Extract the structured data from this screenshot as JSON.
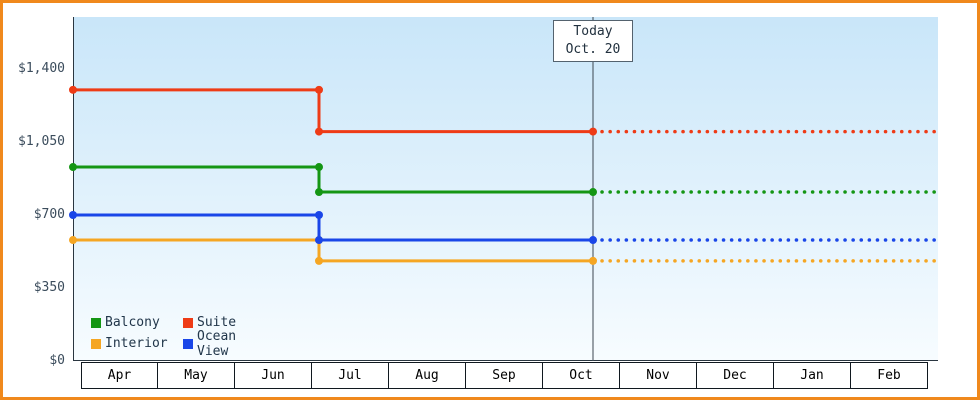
{
  "frame": {
    "border_color": "#f0891c"
  },
  "chart_data": {
    "type": "line",
    "line_style": "step",
    "x_categories": [
      "Apr",
      "May",
      "Jun",
      "Jul",
      "Aug",
      "Sep",
      "Oct",
      "Nov",
      "Dec",
      "Jan",
      "Feb"
    ],
    "y_ticks": [
      {
        "label": "$0",
        "value": 0
      },
      {
        "label": "$350",
        "value": 350
      },
      {
        "label": "$700",
        "value": 700
      },
      {
        "label": "$1,050",
        "value": 1050
      },
      {
        "label": "$1,400",
        "value": 1400
      }
    ],
    "ylim": [
      0,
      1400
    ],
    "grid": false,
    "price_drop_month": "Jul",
    "today": {
      "line1": "Today",
      "line2": "Oct. 20",
      "month": "Oct",
      "day": 20
    },
    "series": [
      {
        "name": "Suite",
        "color": "#ee3b16",
        "value_until_jul": 1300,
        "value_after_jul": 1100,
        "projected_value": 1100
      },
      {
        "name": "Balcony",
        "color": "#149614",
        "value_until_jul": 930,
        "value_after_jul": 810,
        "projected_value": 810
      },
      {
        "name": "Interior",
        "color": "#f5a623",
        "value_until_jul": 580,
        "value_after_jul": 480,
        "projected_value": 480
      },
      {
        "name": "Ocean View",
        "color": "#1a46e8",
        "value_until_jul": 700,
        "value_after_jul": 580,
        "projected_value": 580
      }
    ],
    "legend": {
      "position": "bottom-left",
      "rows": [
        [
          "Balcony",
          "Suite"
        ],
        [
          "Interior",
          "Ocean View"
        ]
      ]
    }
  }
}
